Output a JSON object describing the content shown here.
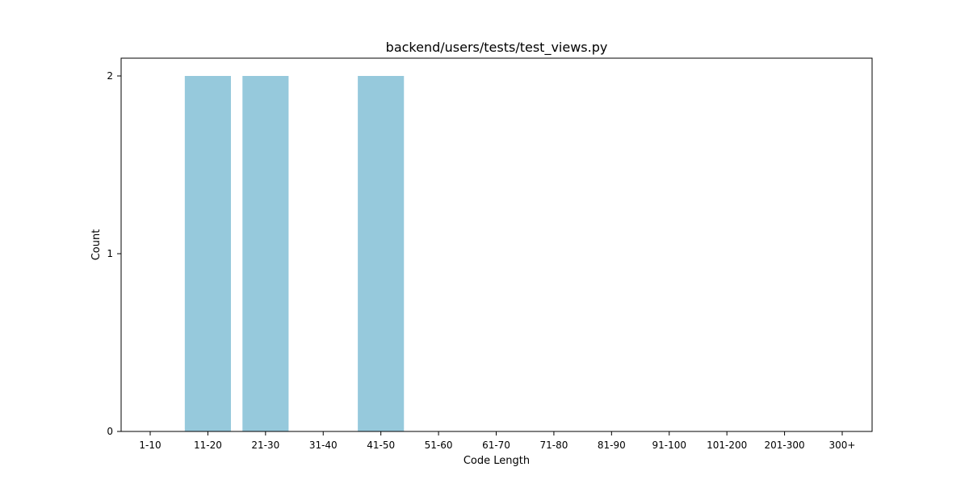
{
  "chart_data": {
    "type": "bar",
    "title": "backend/users/tests/test_views.py",
    "xlabel": "Code Length",
    "ylabel": "Count",
    "categories": [
      "1-10",
      "11-20",
      "21-30",
      "31-40",
      "41-50",
      "51-60",
      "61-70",
      "71-80",
      "81-90",
      "91-100",
      "101-200",
      "201-300",
      "300+"
    ],
    "values": [
      0,
      2,
      2,
      0,
      2,
      0,
      0,
      0,
      0,
      0,
      0,
      0,
      0
    ],
    "ylim": [
      0,
      2.1
    ],
    "yticks": [
      0,
      1,
      2
    ],
    "grid": false,
    "bar_color": "#96c9dc",
    "axis_color": "#000000"
  }
}
